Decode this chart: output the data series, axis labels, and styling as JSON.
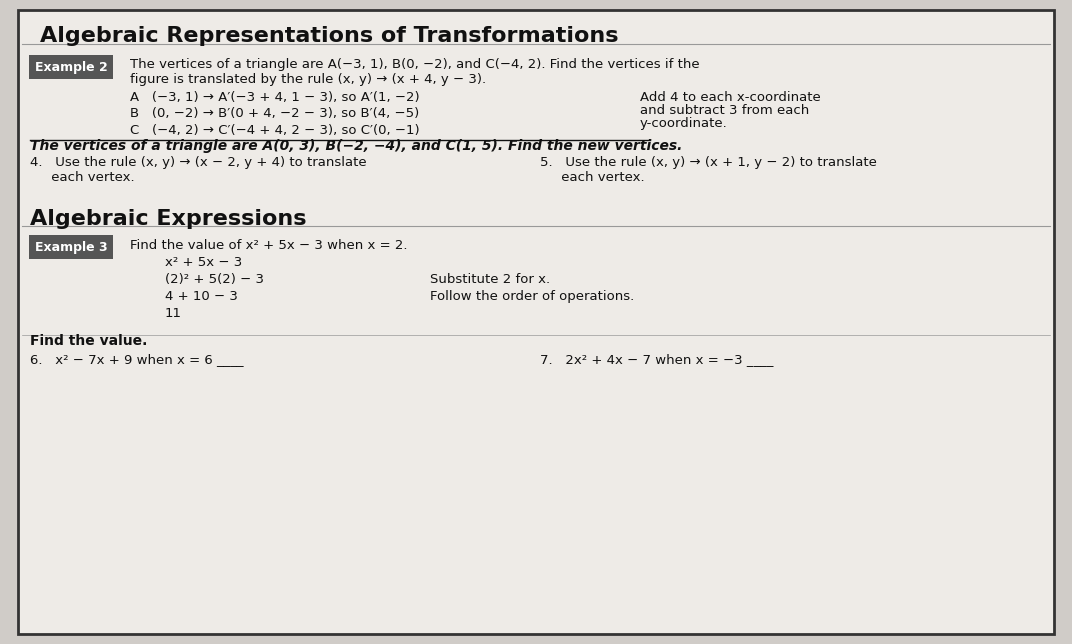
{
  "title": "Algebraic Representations of Transformations",
  "bg_color": "#d0ccc8",
  "box_bg": "#e8e4e0",
  "example2_label": "Example 2",
  "example2_label_bg": "#5a5a5a",
  "example2_label_color": "#ffffff",
  "example2_problem": "The vertices of a triangle are A(−3, 1), B(0, −2), and C(−4, 2). Find the vertices if the\nfigure is translated by the rule (x, y) → (x + 4, y − 3).",
  "example2_lines": [
    "A   (−3, 1) → A′(−3 + 4, 1 − 3), so A′(1, −2)",
    "B   (0, −2) → B′(0 + 4, −2 − 3), so B′(4, −5)",
    "C   (−4, 2) → C′(−4 + 4, 2 − 3), so C′(0, −1)"
  ],
  "example2_note_lines": [
    "Add 4 to each x-coordinate",
    "and subtract 3 from each",
    "y-coordinate."
  ],
  "practice_bold": "The vertices of a triangle are A(0, 3), B(−2, −4), and C(1, 5). Find the new vertices.",
  "q4_text": "4.   Use the rule (x, y) → (x − 2, y + 4) to translate\n     each vertex.",
  "q5_text": "5.   Use the rule (x, y) → (x + 1, y − 2) to translate\n     each vertex.",
  "section2_title": "Algebraic Expressions",
  "example3_label": "Example 3",
  "example3_label_bg": "#5a5a5a",
  "example3_label_color": "#ffffff",
  "example3_problem": "Find the value of x² + 5x − 3 when x = 2.",
  "example3_lines": [
    "x² + 5x − 3",
    "(2)² + 5(2) − 3",
    "4 + 10 − 3",
    "11"
  ],
  "example3_notes": [
    "",
    "Substitute 2 for x.",
    "Follow the order of operations.",
    ""
  ],
  "find_value": "Find the value.",
  "q6_text": "6.   x² − 7x + 9 when x = 6 ____",
  "q7_text": "7.   2x² + 4x − 7 when x = −3 ____"
}
